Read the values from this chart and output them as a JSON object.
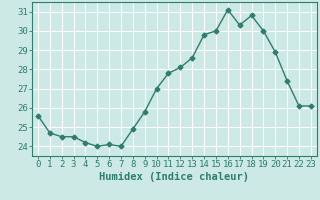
{
  "x": [
    0,
    1,
    2,
    3,
    4,
    5,
    6,
    7,
    8,
    9,
    10,
    11,
    12,
    13,
    14,
    15,
    16,
    17,
    18,
    19,
    20,
    21,
    22,
    23
  ],
  "y": [
    25.6,
    24.7,
    24.5,
    24.5,
    24.2,
    24.0,
    24.1,
    24.0,
    24.9,
    25.8,
    27.0,
    27.8,
    28.1,
    28.6,
    29.8,
    30.0,
    31.1,
    30.3,
    30.8,
    30.0,
    28.9,
    27.4,
    26.1,
    26.1
  ],
  "xlabel": "Humidex (Indice chaleur)",
  "xlim": [
    -0.5,
    23.5
  ],
  "ylim": [
    23.5,
    31.5
  ],
  "yticks": [
    24,
    25,
    26,
    27,
    28,
    29,
    30,
    31
  ],
  "xticks": [
    0,
    1,
    2,
    3,
    4,
    5,
    6,
    7,
    8,
    9,
    10,
    11,
    12,
    13,
    14,
    15,
    16,
    17,
    18,
    19,
    20,
    21,
    22,
    23
  ],
  "line_color": "#2e7d6e",
  "marker": "D",
  "marker_size": 2.5,
  "bg_color": "#cce9e5",
  "grid_color": "#ffffff",
  "axes_color": "#2e7d6e",
  "tick_label_color": "#2e7d6e",
  "xlabel_fontsize": 7.5,
  "tick_fontsize": 6.5,
  "line_width": 1.0
}
